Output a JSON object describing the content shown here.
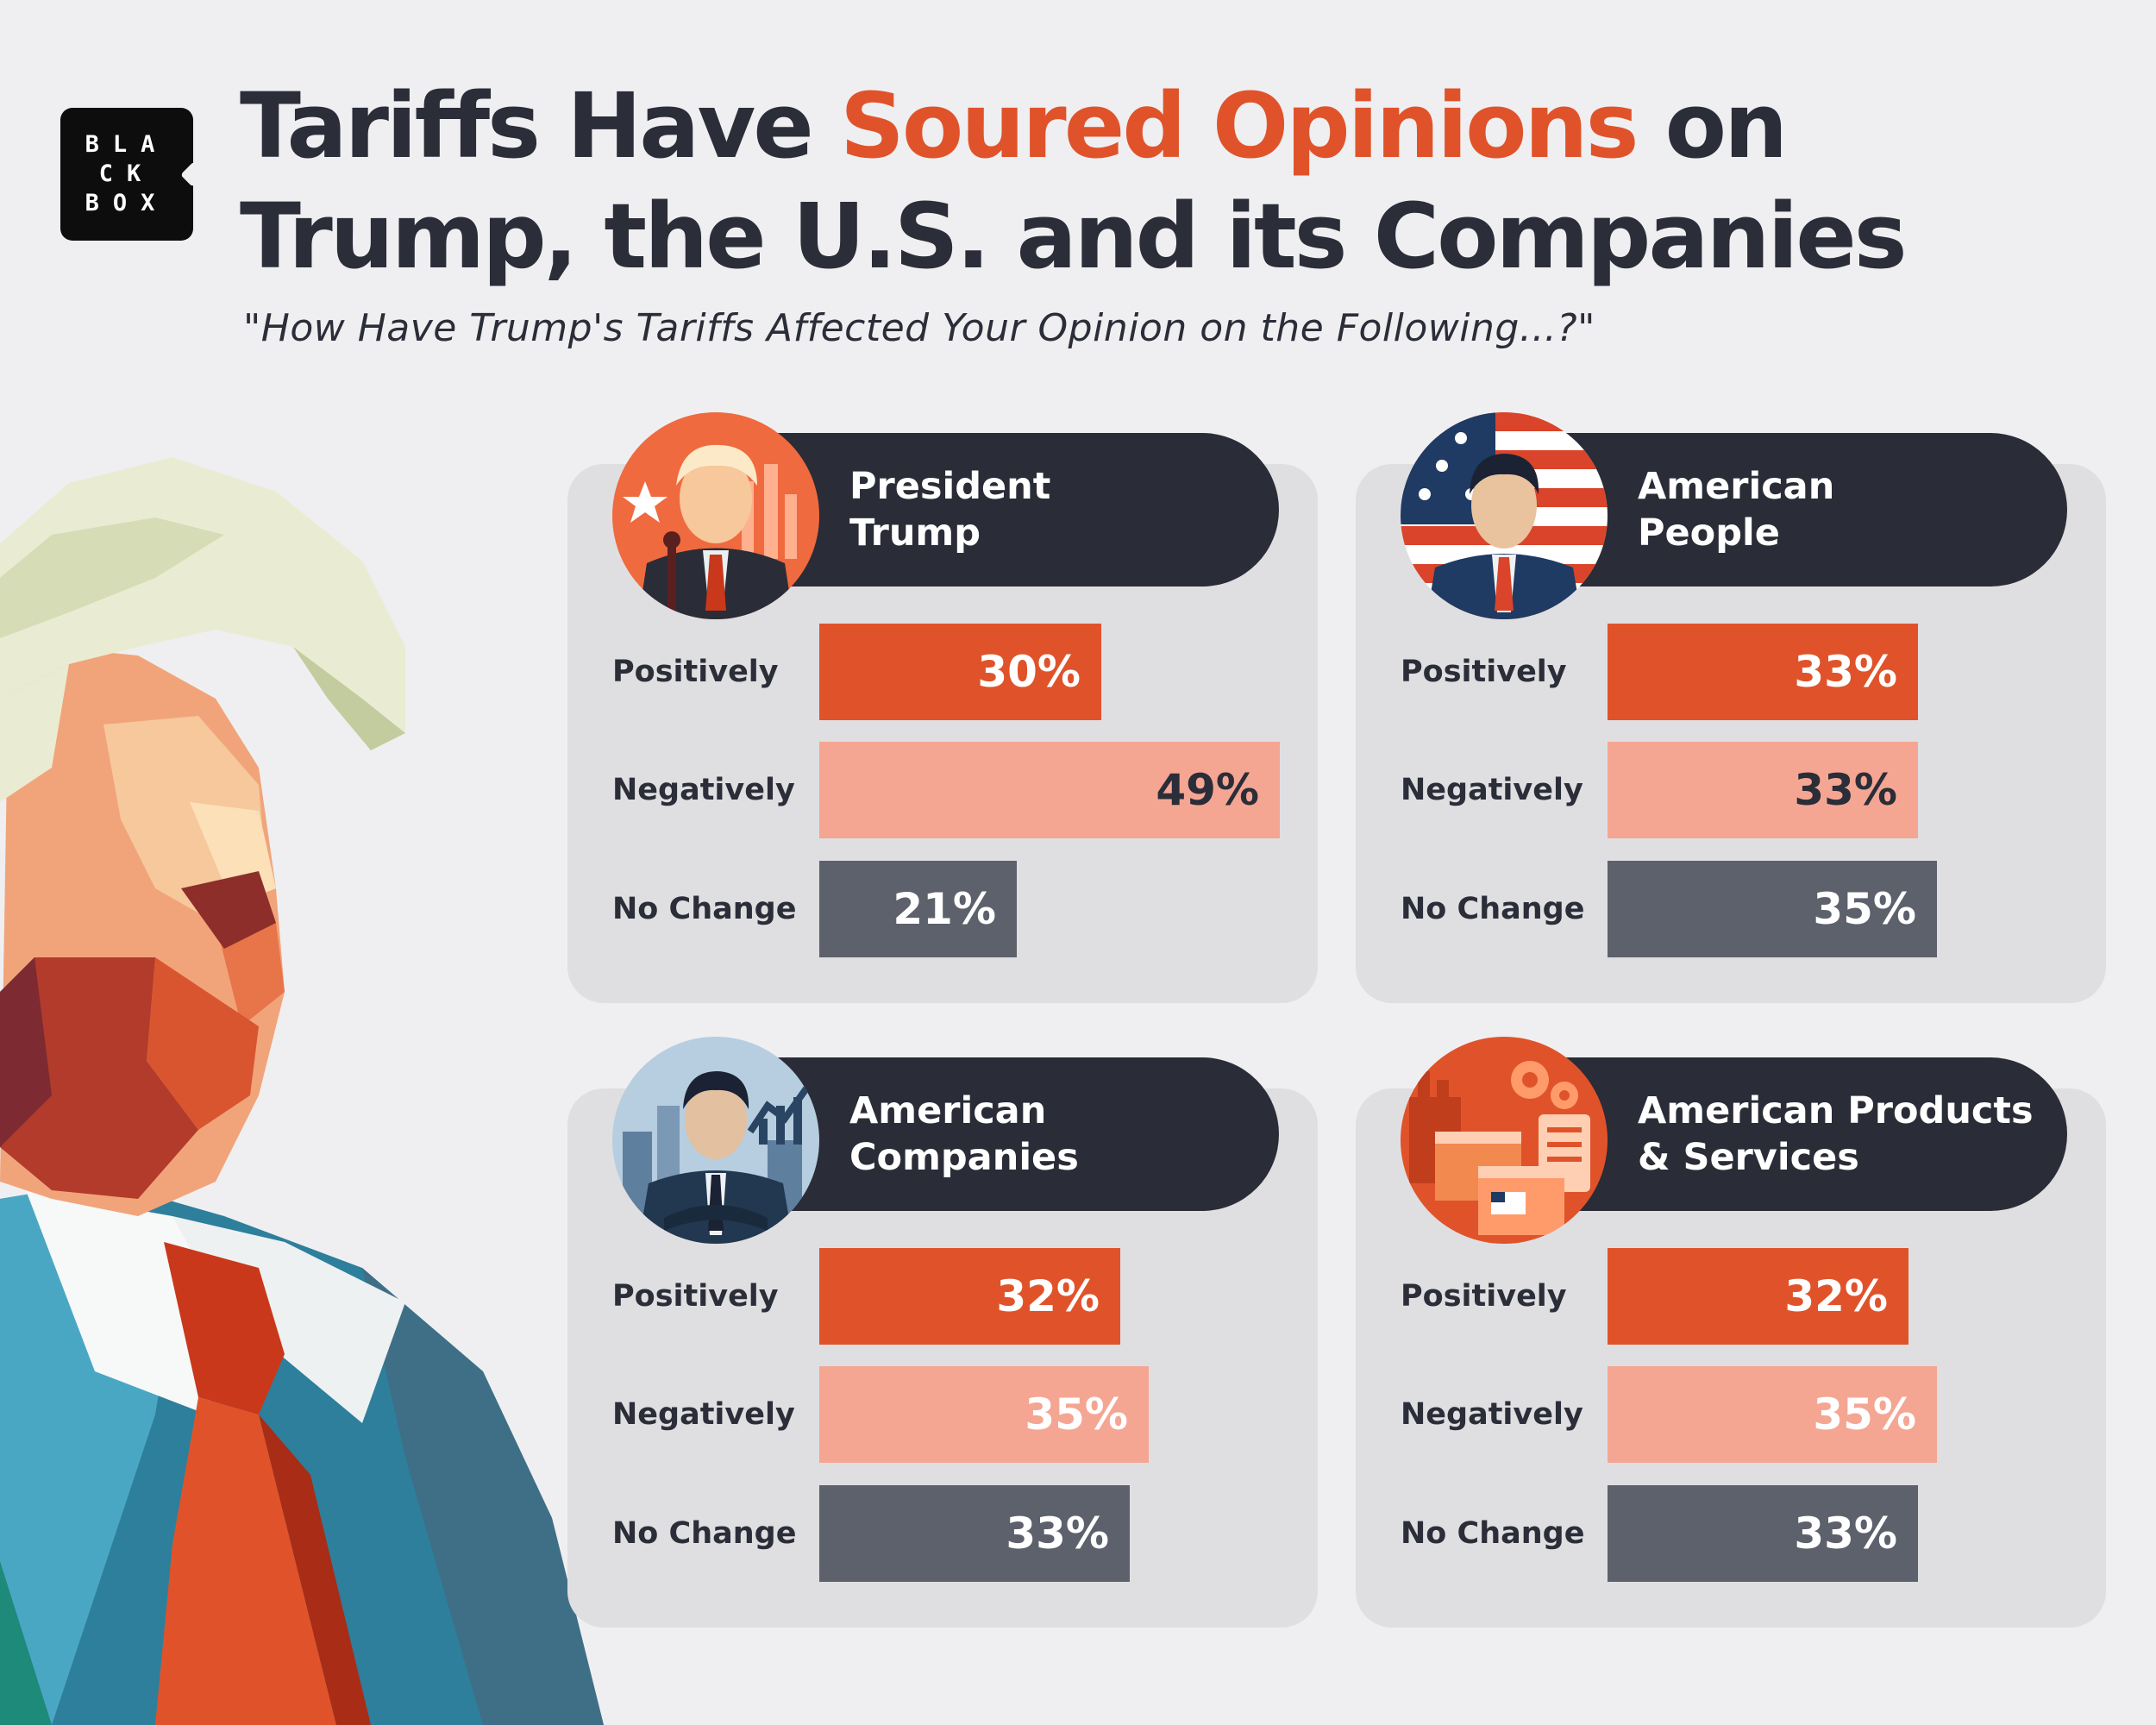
{
  "brand": {
    "logo_lines": [
      "BLA",
      "CK",
      "BOX"
    ]
  },
  "title": {
    "part1": "Tariffs Have ",
    "highlight": "Soured Opinions",
    "part2": " on",
    "line2": "Trump, the U.S. and its Companies"
  },
  "subtitle": "\"How Have Trump's Tariffs Affected Your Opinion on the Following...?\"",
  "colors": {
    "positively": "#e0532a",
    "negatively": "#f4a692",
    "no_change": "#5d616c",
    "highlight": "#e0532a",
    "dark": "#2a2c37",
    "background": "#efeff1",
    "panel": "#dfdfe2"
  },
  "panels": [
    {
      "title_lines": [
        "President",
        "Trump"
      ],
      "icon": "president-trump-icon"
    },
    {
      "title_lines": [
        "American",
        "People"
      ],
      "icon": "american-person-icon"
    },
    {
      "title_lines": [
        "American",
        "Companies"
      ],
      "icon": "businessman-icon"
    },
    {
      "title_lines": [
        "American Products",
        "& Services"
      ],
      "icon": "factory-products-icon"
    }
  ],
  "chart_data": {
    "type": "bar",
    "orientation": "horizontal",
    "unit": "%",
    "categories": [
      "Positively",
      "Negatively",
      "No Change"
    ],
    "charts": [
      {
        "title": "President Trump",
        "values": [
          30,
          49,
          21
        ]
      },
      {
        "title": "American People",
        "values": [
          33,
          33,
          35
        ]
      },
      {
        "title": "American Companies",
        "values": [
          32,
          35,
          33
        ]
      },
      {
        "title": "American Products & Services",
        "values": [
          32,
          35,
          33
        ]
      }
    ]
  }
}
